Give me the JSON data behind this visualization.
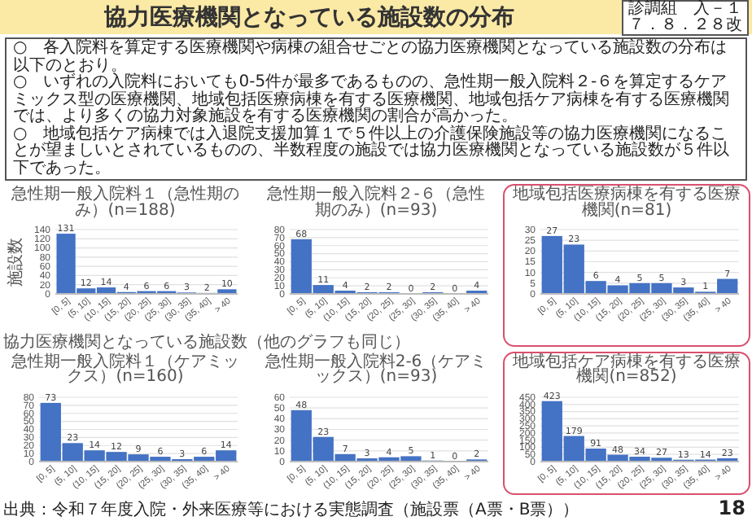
{
  "chart_data": [
    {
      "type": "other",
      "title": "協力医療機関となっている施設数の分布",
      "annotations": [
        "診調組　入－１",
        "７．８．２８改",
        "○　各入院料を算定する医療機関や病棟の組合せごとの協力医療機関となっている施設数の分布は以下のとおり。",
        "○　いずれの入院料においても0-5件が最多であるものの、急性期一般入院料２-６を算定するケアミックス型の医療機関、地域包括医療病棟を有する医療機関、地域包括ケア病棟を有する医療機関では、より多くの協力対象施設を有する医療機関の割合が高かった。",
        "○　地域包括ケア病棟では入退院支援加算１で５件以上の介護保険施設等の協力医療機関になることが望ましいとされているものの、半数程度の施設では協力医療機関となっている施設数が５件以下であった。",
        "出典：令和７年度入院・外来医療等における実態調査（施設票（A票・B票））",
        "18"
      ]
    },
    {
      "type": "bar",
      "title": "急性期一般入院料１（急性期のみ）(n=188)",
      "ylabel": "施設数",
      "xlabel": "協力医療機関となっている施設数（他のグラフも同じ）",
      "categories": [
        "[0, 5]",
        "(5, 10]",
        "(10, 15]",
        "(15, 20]",
        "(20, 25]",
        "(25, 30]",
        "(30, 35]",
        "(35, 40]",
        "> 40"
      ],
      "values": [
        131,
        12,
        14,
        4,
        6,
        6,
        3,
        2,
        10
      ],
      "color": "#4472c4",
      "ylim": [
        0,
        140
      ],
      "yticks": [
        0,
        20,
        40,
        60,
        80,
        100,
        120,
        140
      ],
      "grid": "y",
      "data_labels": true
    },
    {
      "type": "bar",
      "title": "急性期一般入院料２-６（急性期のみ）(n=93)",
      "categories": [
        "[0, 5]",
        "(5, 10]",
        "(10, 15]",
        "(15, 20]",
        "(20, 25]",
        "(25, 30]",
        "(30, 35]",
        "(35, 40]",
        "> 40"
      ],
      "values": [
        68,
        11,
        4,
        2,
        2,
        0,
        2,
        0,
        4
      ],
      "color": "#4472c4",
      "ylim": [
        0,
        80
      ],
      "yticks": [
        0,
        10,
        20,
        30,
        40,
        50,
        60,
        70,
        80
      ],
      "grid": "y",
      "data_labels": true
    },
    {
      "type": "bar",
      "title": "地域包括医療病棟を有する医療機関(n=81)",
      "categories": [
        "[0, 5]",
        "(5, 10]",
        "(10, 15]",
        "(15, 20]",
        "(20, 25]",
        "(25, 30]",
        "(30, 35]",
        "(35, 40]",
        "> 40"
      ],
      "values": [
        27,
        23,
        6,
        4,
        5,
        5,
        3,
        1,
        7
      ],
      "color": "#4472c4",
      "ylim": [
        0,
        30
      ],
      "yticks": [
        0,
        5,
        10,
        15,
        20,
        25,
        30
      ],
      "grid": "y",
      "data_labels": true
    },
    {
      "type": "bar",
      "title": "急性期一般入院料１（ケアミックス）(n=160)",
      "categories": [
        "[0, 5]",
        "(5, 10]",
        "(10, 15]",
        "(15, 20]",
        "(20, 25]",
        "(25, 30]",
        "(30, 35]",
        "(35, 40]",
        "> 40"
      ],
      "values": [
        73,
        23,
        14,
        12,
        9,
        6,
        3,
        6,
        14
      ],
      "color": "#4472c4",
      "ylim": [
        0,
        80
      ],
      "yticks": [
        0,
        10,
        20,
        30,
        40,
        50,
        60,
        70,
        80
      ],
      "grid": "y",
      "data_labels": true
    },
    {
      "type": "bar",
      "title": "急性期一般入院料2-6（ケアミックス）(n=93)",
      "categories": [
        "[0, 5]",
        "(5, 10]",
        "(10, 15]",
        "(15, 20]",
        "(20, 25]",
        "(25, 30]",
        "(30, 35]",
        "(35, 40]",
        "> 40"
      ],
      "values": [
        48,
        23,
        7,
        3,
        4,
        5,
        1,
        0,
        2
      ],
      "color": "#4472c4",
      "ylim": [
        0,
        60
      ],
      "yticks": [
        0,
        10,
        20,
        30,
        40,
        50,
        60
      ],
      "grid": "y",
      "data_labels": true
    },
    {
      "type": "bar",
      "title": "地域包括ケア病棟を有する医療機関(n=852)",
      "categories": [
        "[0, 5]",
        "(5, 10]",
        "(10, 15]",
        "(15, 20]",
        "(20, 25]",
        "(25, 30]",
        "(30, 35]",
        "(35, 40]",
        "> 40"
      ],
      "values": [
        423,
        179,
        91,
        48,
        34,
        27,
        13,
        14,
        23
      ],
      "color": "#4472c4",
      "ylim": [
        0,
        450
      ],
      "yticks": [
        0,
        50,
        100,
        150,
        200,
        250,
        300,
        350,
        400,
        450
      ],
      "grid": "y",
      "data_labels": true
    }
  ]
}
